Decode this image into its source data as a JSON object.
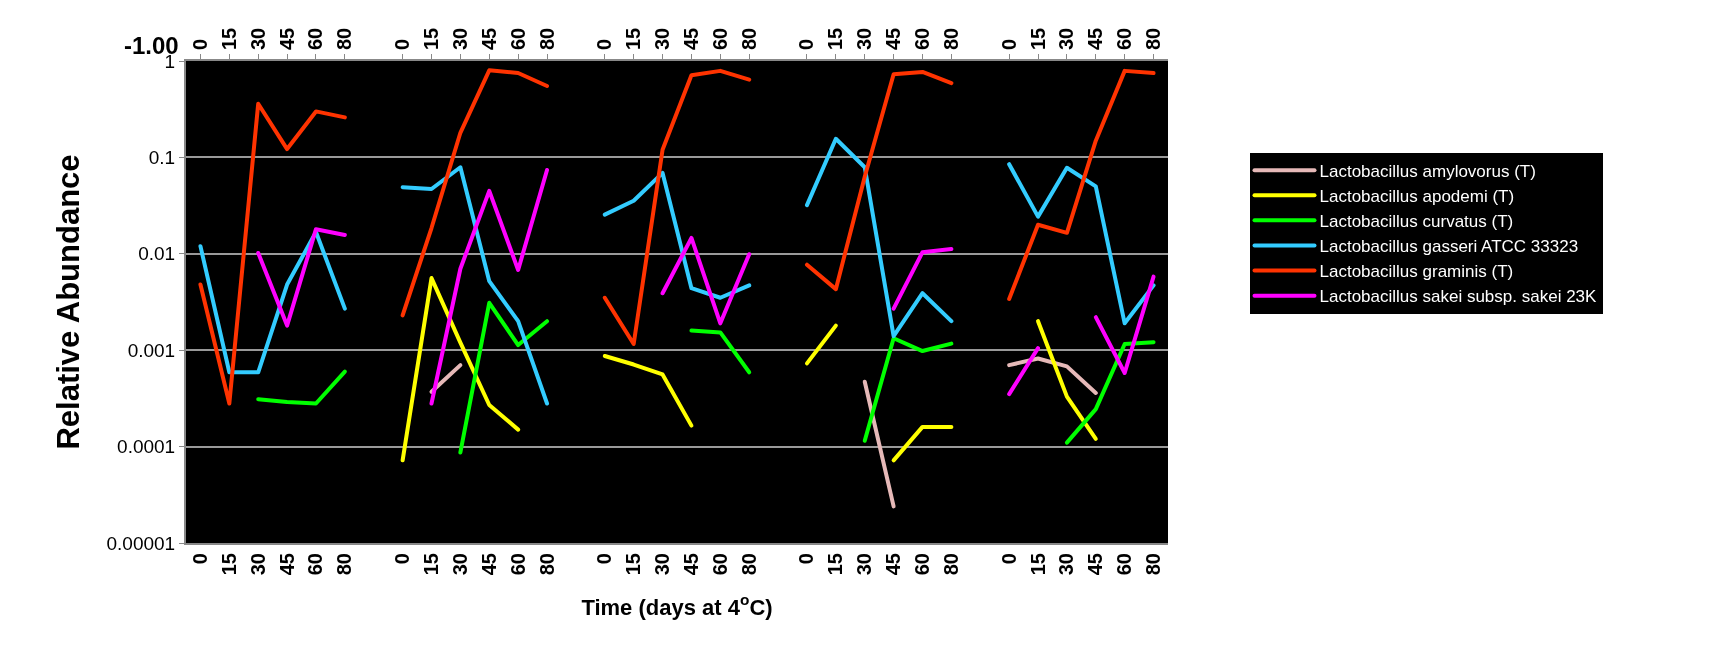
{
  "chart_data": {
    "type": "line",
    "xlabel": "Time (days at 4$^{o}$C)",
    "ylabel": "Relative Abundance",
    "annotations": [
      "-1.00"
    ],
    "categories": [
      "0",
      "15",
      "30",
      "45",
      "60",
      "80",
      null,
      "0",
      "15",
      "30",
      "45",
      "60",
      "80",
      null,
      "0",
      "15",
      "30",
      "45",
      "60",
      "80",
      null,
      "0",
      "15",
      "30",
      "45",
      "60",
      "80",
      null,
      "0",
      "15",
      "30",
      "45",
      "60",
      "80"
    ],
    "log": true,
    "ylim": [
      1e-05,
      1
    ],
    "yticks": [
      {
        "value": 1e-05,
        "label": "0.00001"
      },
      {
        "value": 0.0001,
        "label": "0.0001"
      },
      0.001,
      0.01,
      0.1,
      1
    ],
    "grid": "y",
    "legend": "right",
    "marker": "none",
    "series": [
      {
        "name": "Lactobacillus amylovorus (T)",
        "color": "#e6b9b8",
        "values": [
          null,
          null,
          null,
          null,
          null,
          null,
          null,
          null,
          0.00037,
          0.0007,
          null,
          null,
          null,
          null,
          null,
          null,
          null,
          null,
          null,
          null,
          null,
          null,
          null,
          0.00047,
          2.4e-05,
          null,
          null,
          null,
          0.0007,
          0.00082,
          0.00068,
          0.00036,
          null,
          null
        ]
      },
      {
        "name": "Lactobacillus apodemi (T)",
        "color": "#ffff00",
        "values": [
          null,
          null,
          null,
          null,
          null,
          null,
          null,
          7.2e-05,
          0.0056,
          0.0012,
          0.00027,
          0.00015,
          null,
          null,
          0.00087,
          0.00071,
          0.00056,
          0.000165,
          null,
          null,
          null,
          0.00073,
          0.0018,
          null,
          7.2e-05,
          0.00016,
          0.00016,
          null,
          null,
          0.002,
          0.00033,
          0.00012,
          null,
          null
        ]
      },
      {
        "name": "Lactobacillus curvatus (T)",
        "color": "#00ff00",
        "values": [
          null,
          null,
          0.00031,
          0.00029,
          0.00028,
          0.0006,
          null,
          null,
          null,
          8.7e-05,
          0.0031,
          0.00113,
          0.002,
          null,
          null,
          null,
          null,
          0.0016,
          0.00153,
          0.00059,
          null,
          null,
          null,
          0.000115,
          0.00133,
          0.00098,
          0.00117,
          null,
          null,
          null,
          0.00011,
          0.000245,
          0.00116,
          0.00121
        ]
      },
      {
        "name": "Lactobacillus gasseri ATCC 33323",
        "color": "#33ccff",
        "values": [
          0.012,
          0.00059,
          0.00059,
          0.0048,
          0.0168,
          0.0027,
          null,
          0.049,
          0.047,
          0.079,
          0.0052,
          0.002,
          0.00028,
          null,
          0.0255,
          0.0355,
          0.069,
          0.0044,
          0.0035,
          0.0047,
          null,
          0.032,
          0.156,
          0.079,
          0.0014,
          0.0039,
          0.002,
          null,
          0.085,
          0.0243,
          0.078,
          0.05,
          0.0019,
          0.0047
        ]
      },
      {
        "name": "Lactobacillus graminis (T)",
        "color": "#ff3300",
        "values": [
          0.0048,
          0.00028,
          0.36,
          0.122,
          0.3,
          0.26,
          null,
          0.0023,
          0.0185,
          0.18,
          0.8,
          0.75,
          0.55,
          null,
          0.0035,
          0.00116,
          0.12,
          0.71,
          0.79,
          0.64,
          null,
          0.0077,
          0.0043,
          0.063,
          0.73,
          0.77,
          0.59,
          null,
          0.0034,
          0.02,
          0.0165,
          0.149,
          0.79,
          0.75
        ]
      },
      {
        "name": "Lactobacillus sakei subsp. sakei 23K",
        "color": "#ff00ff",
        "values": [
          null,
          null,
          0.0102,
          0.0018,
          0.018,
          0.0157,
          null,
          null,
          0.00028,
          0.007,
          0.045,
          0.0068,
          0.074,
          null,
          null,
          null,
          0.0039,
          0.0146,
          0.0019,
          0.0099,
          null,
          null,
          null,
          null,
          0.0027,
          0.0104,
          0.0112,
          null,
          0.00035,
          0.00105,
          null,
          0.0022,
          0.00058,
          0.0058
        ]
      }
    ]
  }
}
